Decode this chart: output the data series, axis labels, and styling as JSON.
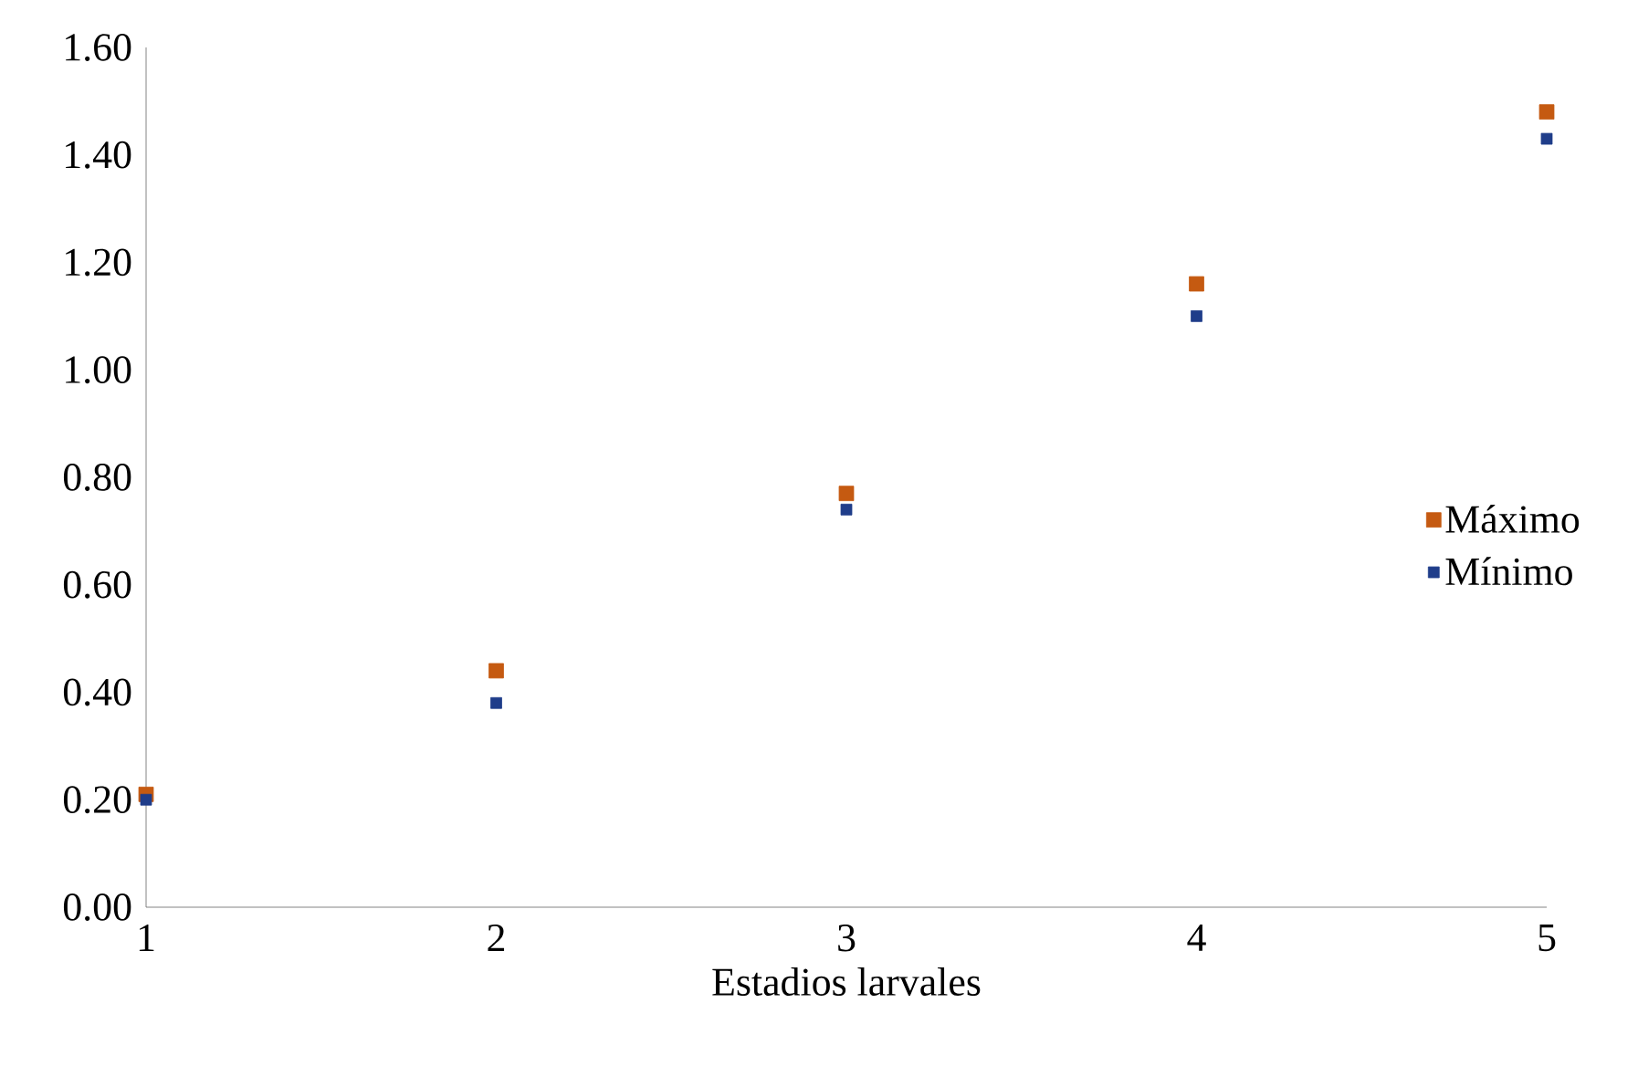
{
  "chart_data": {
    "type": "scatter",
    "xlabel": "Estadios  larvales",
    "xlim": [
      1,
      5
    ],
    "xticks": [
      1,
      2,
      3,
      4,
      5
    ],
    "ylim": [
      0,
      1.6
    ],
    "yticks": [
      {
        "value": 0,
        "label": "0.00"
      },
      {
        "value": 0.2,
        "label": "0.20"
      },
      {
        "value": 0.4,
        "label": "0.40"
      },
      {
        "value": 0.6,
        "label": "0.60"
      },
      {
        "value": 0.8,
        "label": "0.80"
      },
      {
        "value": 1.0,
        "label": "1.00"
      },
      {
        "value": 1.2,
        "label": "1.20"
      },
      {
        "value": 1.4,
        "label": "1.40"
      },
      {
        "value": 1.6,
        "label": "1.60"
      }
    ],
    "grid": false,
    "legend": "right",
    "marker": "square",
    "series": [
      {
        "name": "Máximo",
        "color": "#c55a11",
        "x": [
          1,
          2,
          3,
          4,
          5
        ],
        "values": [
          0.21,
          0.44,
          0.77,
          1.16,
          1.48
        ]
      },
      {
        "name": "Mínimo",
        "color": "#1f3d8a",
        "x": [
          1,
          2,
          3,
          4,
          5
        ],
        "values": [
          0.2,
          0.38,
          0.74,
          1.1,
          1.43
        ]
      }
    ]
  }
}
